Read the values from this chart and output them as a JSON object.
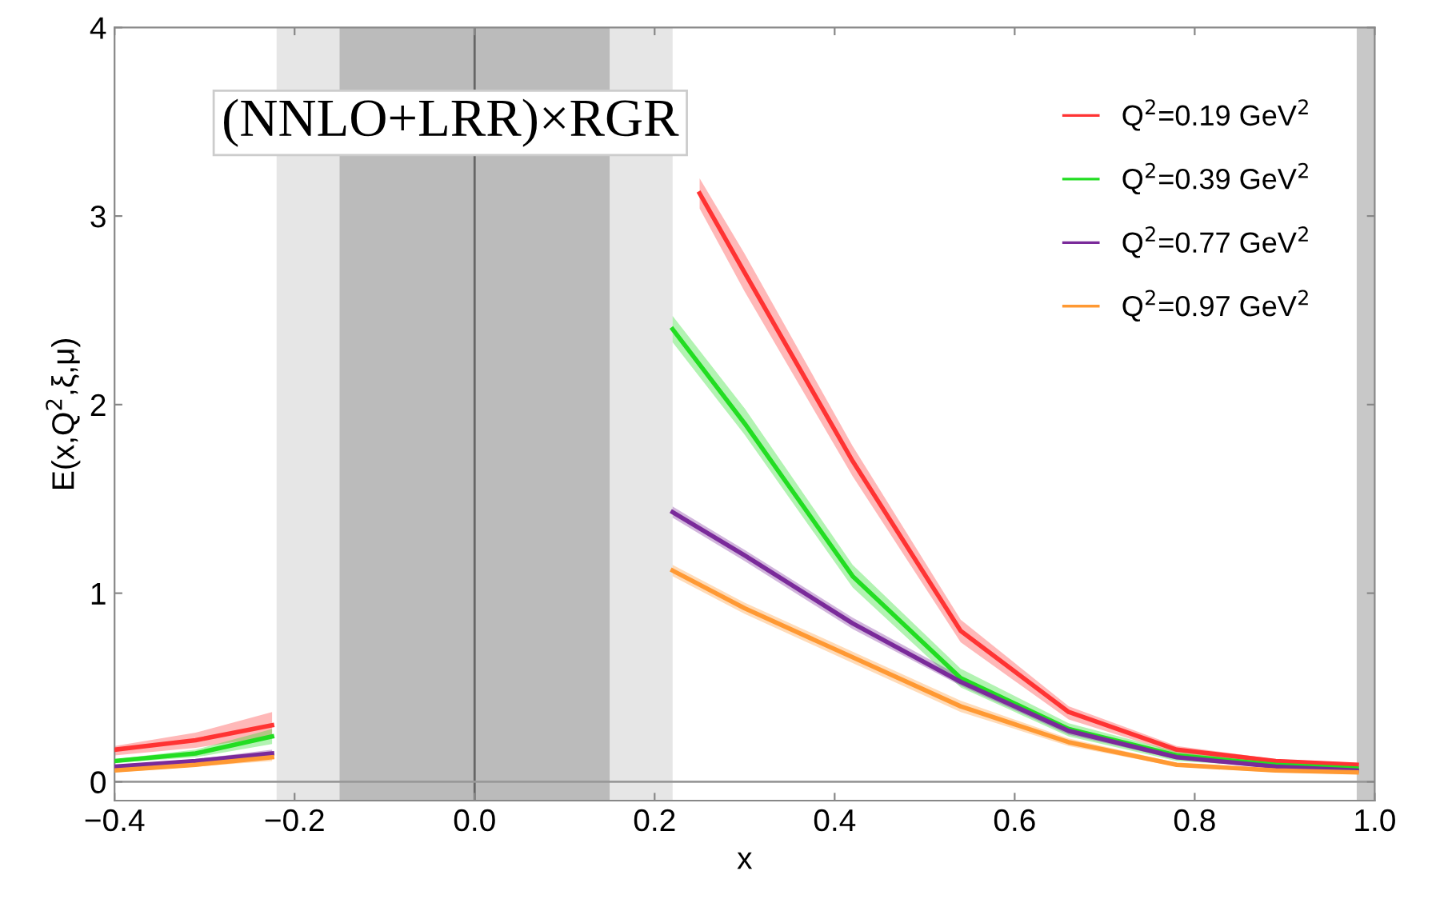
{
  "chart_data": {
    "type": "line",
    "xlabel": "x",
    "ylabel": "E(x,Q$^{2}$,ξ,μ)",
    "annotations": [
      "(NNLO+LRR)×RGR"
    ],
    "x": [
      -0.4,
      -0.31,
      -0.225,
      0.0,
      0.22,
      0.3,
      0.42,
      0.54,
      0.66,
      0.78,
      0.89,
      0.98
    ],
    "series": [
      {
        "name": "Q$^{2}$=0.19 GeV$^{2}$",
        "color": "#ff3333",
        "x": [
          -0.4,
          -0.31,
          -0.225,
          0.0,
          0.25,
          0.3,
          0.42,
          0.54,
          0.66,
          0.78,
          0.89,
          0.98
        ],
        "values": [
          0.17,
          0.22,
          0.3,
          null,
          3.12,
          2.7,
          1.7,
          0.8,
          0.37,
          0.17,
          0.11,
          0.09
        ],
        "lower": [
          0.14,
          0.18,
          0.24,
          null,
          3.04,
          2.6,
          1.62,
          0.74,
          0.33,
          0.15,
          0.1,
          0.08
        ],
        "upper": [
          0.19,
          0.26,
          0.37,
          null,
          3.2,
          2.8,
          1.78,
          0.86,
          0.4,
          0.19,
          0.12,
          0.1
        ]
      },
      {
        "name": "Q$^{2}$=0.39 GeV$^{2}$",
        "color": "#22dd22",
        "values": [
          0.11,
          0.15,
          0.24,
          null,
          2.4,
          1.9,
          1.09,
          0.55,
          0.28,
          0.14,
          0.09,
          0.07
        ],
        "lower": [
          0.1,
          0.13,
          0.2,
          null,
          2.33,
          1.84,
          1.03,
          0.5,
          0.24,
          0.11,
          0.08,
          0.06
        ],
        "upper": [
          0.12,
          0.17,
          0.28,
          null,
          2.47,
          1.98,
          1.15,
          0.6,
          0.31,
          0.16,
          0.1,
          0.08
        ]
      },
      {
        "name": "Q$^{2}$=0.77 GeV$^{2}$",
        "color": "#7a2a9a",
        "values": [
          0.08,
          0.11,
          0.15,
          null,
          1.43,
          1.2,
          0.84,
          0.53,
          0.27,
          0.13,
          0.08,
          0.06
        ],
        "lower": [
          0.07,
          0.1,
          0.13,
          null,
          1.4,
          1.17,
          0.81,
          0.51,
          0.25,
          0.12,
          0.07,
          0.05
        ],
        "upper": [
          0.09,
          0.12,
          0.17,
          null,
          1.46,
          1.23,
          0.87,
          0.56,
          0.29,
          0.14,
          0.09,
          0.07
        ]
      },
      {
        "name": "Q$^{2}$=0.97 GeV$^{2}$",
        "color": "#ff9933",
        "values": [
          0.06,
          0.09,
          0.13,
          null,
          1.12,
          0.92,
          0.66,
          0.4,
          0.21,
          0.09,
          0.06,
          0.05
        ],
        "lower": [
          0.05,
          0.08,
          0.11,
          null,
          1.09,
          0.89,
          0.63,
          0.37,
          0.19,
          0.08,
          0.05,
          0.04
        ],
        "upper": [
          0.07,
          0.1,
          0.15,
          null,
          1.15,
          0.95,
          0.69,
          0.43,
          0.23,
          0.1,
          0.07,
          0.06
        ]
      }
    ],
    "xlim": [
      -0.4,
      1.0
    ],
    "xticks": [
      {
        "value": -0.4,
        "label": "−0.4"
      },
      {
        "value": -0.2,
        "label": "−0.2"
      },
      {
        "value": 0.0,
        "label": "0.0"
      },
      0.2,
      0.4,
      0.6,
      0.8,
      {
        "value": 1.0,
        "label": "1.0"
      }
    ],
    "ylim": [
      -0.1,
      4
    ],
    "yticks": [
      0,
      1,
      2,
      3,
      4
    ],
    "bands": [
      {
        "axis": "x",
        "from": -0.22,
        "to": 0.22,
        "color": "#e6e6e6"
      },
      {
        "axis": "x",
        "from": -0.15,
        "to": 0.15,
        "color": "#bbbbbb"
      },
      {
        "axis": "x",
        "from": 0.98,
        "to": 1.0,
        "color": "#c8c8c8"
      }
    ],
    "ref_lines": [
      {
        "axis": "x",
        "value": 0,
        "color": "#666666"
      },
      {
        "axis": "y",
        "value": 0,
        "color": "#999999"
      }
    ],
    "grid": false,
    "legend": "top right"
  }
}
